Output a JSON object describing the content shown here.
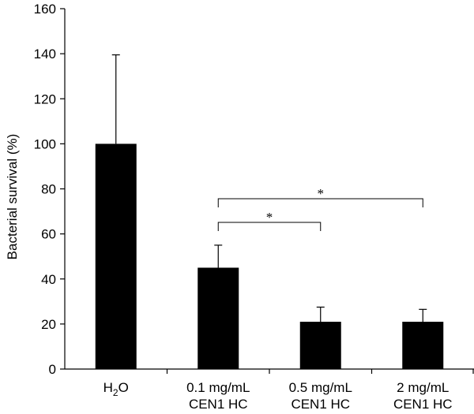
{
  "chart_data": {
    "type": "bar",
    "ylabel": "Bacterial survival (%)",
    "ylim": [
      0,
      160
    ],
    "yticks": [
      0,
      20,
      40,
      60,
      80,
      100,
      120,
      140,
      160
    ],
    "categories": [
      {
        "lines": [
          {
            "main": "H",
            "sub": "2",
            "tail": "O"
          }
        ]
      },
      {
        "lines": [
          {
            "main": "0.1 mg/mL"
          },
          {
            "main": "CEN1 HC"
          }
        ]
      },
      {
        "lines": [
          {
            "main": "0.5 mg/mL"
          },
          {
            "main": "CEN1 HC"
          }
        ]
      },
      {
        "lines": [
          {
            "main": "2  mg/mL"
          },
          {
            "main": "CEN1 HC"
          }
        ]
      }
    ],
    "values": [
      100,
      45,
      21,
      21
    ],
    "error_upper": [
      139.5,
      55,
      27.5,
      26.5
    ],
    "bar_color": "#000000",
    "significance": [
      {
        "from": 1,
        "to": 2,
        "label": "*"
      },
      {
        "from": 1,
        "to": 3,
        "label": "*"
      }
    ],
    "grid": false,
    "legend": "none"
  }
}
